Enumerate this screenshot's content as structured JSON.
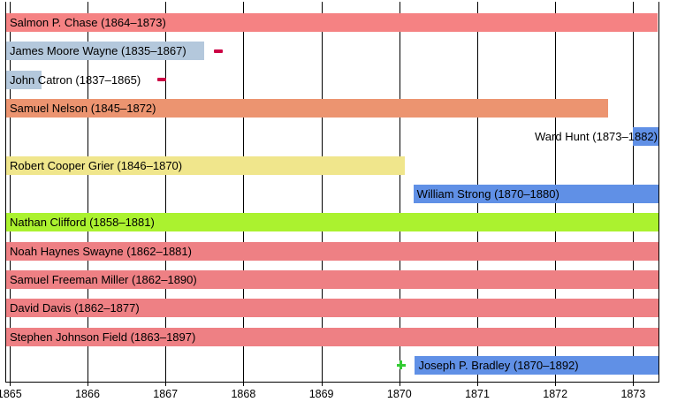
{
  "chart_data": {
    "type": "bar",
    "variant": "gantt-timeline",
    "title": "",
    "xlabel": "",
    "ylabel": "",
    "grid": true,
    "background": "#FFFFFF",
    "grid_color": "#000000",
    "text_color": "#000000",
    "x_axis": {
      "ticks": [
        1865,
        1866,
        1867,
        1868,
        1869,
        1870,
        1871,
        1872,
        1873
      ],
      "tick_labels": [
        "1865",
        "1866",
        "1867",
        "1868",
        "1869",
        "1870",
        "1871",
        "1872",
        "1873"
      ],
      "xlim": [
        1864.95,
        1873.33
      ]
    },
    "rows": [
      {
        "name": "salmon-p-chase",
        "label": "Salmon P. Chase (1864–1873)",
        "tenure": "1864–1873",
        "start": null,
        "end": 1873.31,
        "color": "#F58283",
        "label_pos": "left"
      },
      {
        "name": "james-moore-wayne",
        "label": "James Moore Wayne (1835–1867)",
        "tenure": "1835–1867",
        "start": null,
        "end": 1867.5,
        "color": "#B4C8DC",
        "label_pos": "left",
        "markers": [
          {
            "shape": "dash",
            "year": 1867.68,
            "color": "#CC0044",
            "meaning": "seat-abolished-marker"
          }
        ]
      },
      {
        "name": "john-catron",
        "label": "John Catron (1837–1865)",
        "tenure": "1837–1865",
        "start": null,
        "end": 1865.41,
        "color": "#B4C8DC",
        "label_pos": "left",
        "markers": [
          {
            "shape": "dash",
            "year": 1866.95,
            "color": "#CC0044",
            "meaning": "seat-abolished-marker"
          }
        ]
      },
      {
        "name": "samuel-nelson",
        "label": "Samuel Nelson (1845–1872)",
        "tenure": "1845–1872",
        "start": null,
        "end": 1872.68,
        "color": "#EC9470",
        "label_pos": "left"
      },
      {
        "name": "ward-hunt",
        "label": "Ward Hunt (1873–1882)",
        "tenure": "1873–1882",
        "start": 1873.0,
        "end": null,
        "color": "#6090E6",
        "label_pos": "end"
      },
      {
        "name": "robert-cooper-grier",
        "label": "Robert Cooper Grier (1846–1870)",
        "tenure": "1846–1870",
        "start": null,
        "end": 1870.07,
        "color": "#F0E68C",
        "label_pos": "left"
      },
      {
        "name": "william-strong",
        "label": "William Strong (1870–1880)",
        "tenure": "1870–1880",
        "start": 1870.18,
        "end": null,
        "color": "#6090E6",
        "label_pos": "left"
      },
      {
        "name": "nathan-clifford",
        "label": "Nathan Clifford (1858–1881)",
        "tenure": "1858–1881",
        "start": null,
        "end": null,
        "color": "#ABF22F",
        "label_pos": "left"
      },
      {
        "name": "noah-haynes-swayne",
        "label": "Noah Haynes Swayne (1862–1881)",
        "tenure": "1862–1881",
        "start": null,
        "end": null,
        "color": "#EE8084",
        "label_pos": "left"
      },
      {
        "name": "samuel-freeman-miller",
        "label": "Samuel Freeman Miller (1862–1890)",
        "tenure": "1862–1890",
        "start": null,
        "end": null,
        "color": "#EE8084",
        "label_pos": "left"
      },
      {
        "name": "david-davis",
        "label": "David Davis (1862–1877)",
        "tenure": "1862–1877",
        "start": null,
        "end": null,
        "color": "#EE8084",
        "label_pos": "left"
      },
      {
        "name": "stephen-johnson-field",
        "label": "Stephen Johnson Field (1863–1897)",
        "tenure": "1863–1897",
        "start": null,
        "end": null,
        "color": "#EE8084",
        "label_pos": "left"
      },
      {
        "name": "joseph-p-bradley",
        "label": "Joseph P. Bradley (1870–1892)",
        "tenure": "1870–1892",
        "start": 1870.2,
        "end": null,
        "color": "#6090E6",
        "label_pos": "left",
        "markers": [
          {
            "shape": "plus",
            "year": 1870.02,
            "color": "#33CC33",
            "meaning": "seat-created-marker"
          }
        ]
      }
    ]
  }
}
